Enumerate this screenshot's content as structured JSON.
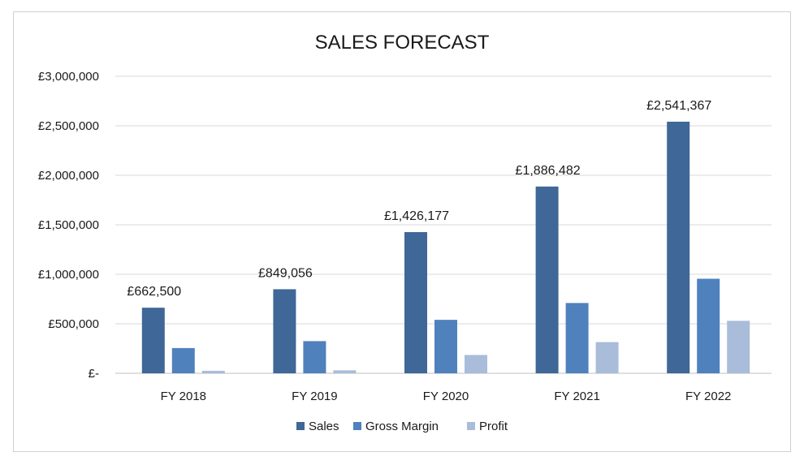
{
  "chart_data": {
    "type": "bar",
    "title": "SALES FORECAST",
    "categories": [
      "FY 2018",
      "FY 2019",
      "FY 2020",
      "FY 2021",
      "FY 2022"
    ],
    "series": [
      {
        "name": "Sales",
        "color": "#3f6797",
        "values": [
          662500,
          849056,
          1426177,
          1886482,
          2541367
        ]
      },
      {
        "name": "Gross Margin",
        "color": "#4f81bd",
        "values": [
          255000,
          325000,
          540000,
          710000,
          955000
        ]
      },
      {
        "name": "Profit",
        "color": "#a9bcd9",
        "values": [
          25000,
          30000,
          185000,
          315000,
          530000
        ]
      }
    ],
    "data_labels": [
      "£662,500",
      "£849,056",
      "£1,426,177",
      "£1,886,482",
      "£2,541,367"
    ],
    "y_ticks": [
      {
        "value": 0,
        "label": "£-"
      },
      {
        "value": 500000,
        "label": "£500,000"
      },
      {
        "value": 1000000,
        "label": "£1,000,000"
      },
      {
        "value": 1500000,
        "label": "£1,500,000"
      },
      {
        "value": 2000000,
        "label": "£2,000,000"
      },
      {
        "value": 2500000,
        "label": "£2,500,000"
      },
      {
        "value": 3000000,
        "label": "£3,000,000"
      }
    ],
    "ylim": [
      0,
      3000000
    ],
    "grid": true,
    "legend_position": "bottom"
  }
}
